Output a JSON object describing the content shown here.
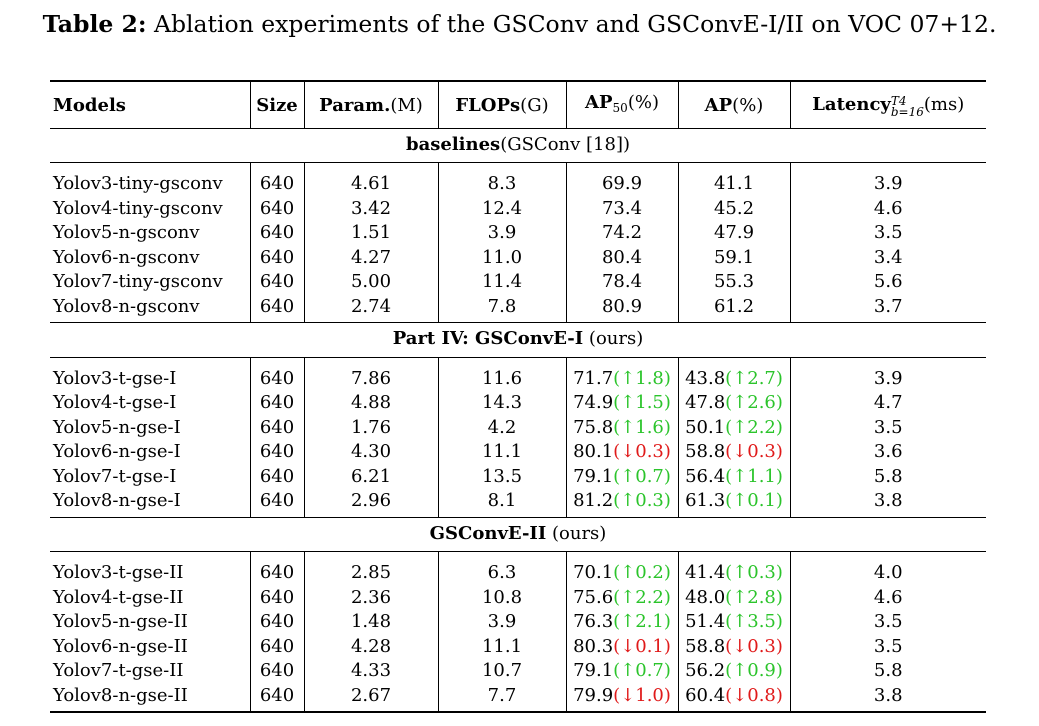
{
  "caption": {
    "label": "Table 2:",
    "text": " Ablation experiments of the GSConv and GSConvE-I/II on VOC 07+12."
  },
  "headers": {
    "models": "Models",
    "size": "Size",
    "param": "Param.",
    "param_unit": "(M)",
    "flops": "FLOPs",
    "flops_unit": "(G)",
    "ap50": "AP",
    "ap50_sub": "50",
    "ap50_unit": "(%)",
    "ap": "AP",
    "ap_unit": "(%)",
    "latency": "Latency",
    "latency_sup": "T4",
    "latency_sub": "b=16",
    "latency_unit": "(ms)"
  },
  "sections": [
    {
      "title_bold": "baselines",
      "title_rest": "(GSConv [18])",
      "rows": [
        {
          "model": "Yolov3-tiny-gsconv",
          "size": "640",
          "param": "4.61",
          "flops": "8.3",
          "ap50": "69.9",
          "ap50_delta": "",
          "ap50_dir": "",
          "ap": "41.1",
          "ap_delta": "",
          "ap_dir": "",
          "latency": "3.9"
        },
        {
          "model": "Yolov4-tiny-gsconv",
          "size": "640",
          "param": "3.42",
          "flops": "12.4",
          "ap50": "73.4",
          "ap50_delta": "",
          "ap50_dir": "",
          "ap": "45.2",
          "ap_delta": "",
          "ap_dir": "",
          "latency": "4.6"
        },
        {
          "model": "Yolov5-n-gsconv",
          "size": "640",
          "param": "1.51",
          "flops": "3.9",
          "ap50": "74.2",
          "ap50_delta": "",
          "ap50_dir": "",
          "ap": "47.9",
          "ap_delta": "",
          "ap_dir": "",
          "latency": "3.5"
        },
        {
          "model": "Yolov6-n-gsconv",
          "size": "640",
          "param": "4.27",
          "flops": "11.0",
          "ap50": "80.4",
          "ap50_delta": "",
          "ap50_dir": "",
          "ap": "59.1",
          "ap_delta": "",
          "ap_dir": "",
          "latency": "3.4"
        },
        {
          "model": "Yolov7-tiny-gsconv",
          "size": "640",
          "param": "5.00",
          "flops": "11.4",
          "ap50": "78.4",
          "ap50_delta": "",
          "ap50_dir": "",
          "ap": "55.3",
          "ap_delta": "",
          "ap_dir": "",
          "latency": "5.6"
        },
        {
          "model": "Yolov8-n-gsconv",
          "size": "640",
          "param": "2.74",
          "flops": "7.8",
          "ap50": "80.9",
          "ap50_delta": "",
          "ap50_dir": "",
          "ap": "61.2",
          "ap_delta": "",
          "ap_dir": "",
          "latency": "3.7"
        }
      ]
    },
    {
      "title_bold": "Part IV: GSConvE-I",
      "title_rest": " (ours)",
      "rows": [
        {
          "model": "Yolov3-t-gse-I",
          "size": "640",
          "param": "7.86",
          "flops": "11.6",
          "ap50": "71.7",
          "ap50_delta": "(↑1.8)",
          "ap50_dir": "up",
          "ap": "43.8",
          "ap_delta": "(↑2.7)",
          "ap_dir": "up",
          "latency": "3.9"
        },
        {
          "model": "Yolov4-t-gse-I",
          "size": "640",
          "param": "4.88",
          "flops": "14.3",
          "ap50": "74.9",
          "ap50_delta": "(↑1.5)",
          "ap50_dir": "up",
          "ap": "47.8",
          "ap_delta": "(↑2.6)",
          "ap_dir": "up",
          "latency": "4.7"
        },
        {
          "model": "Yolov5-n-gse-I",
          "size": "640",
          "param": "1.76",
          "flops": "4.2",
          "ap50": "75.8",
          "ap50_delta": "(↑1.6)",
          "ap50_dir": "up",
          "ap": "50.1",
          "ap_delta": "(↑2.2)",
          "ap_dir": "up",
          "latency": "3.5"
        },
        {
          "model": "Yolov6-n-gse-I",
          "size": "640",
          "param": "4.30",
          "flops": "11.1",
          "ap50": "80.1",
          "ap50_delta": "(↓0.3)",
          "ap50_dir": "down",
          "ap": "58.8",
          "ap_delta": "(↓0.3)",
          "ap_dir": "down",
          "latency": "3.6"
        },
        {
          "model": "Yolov7-t-gse-I",
          "size": "640",
          "param": "6.21",
          "flops": "13.5",
          "ap50": "79.1",
          "ap50_delta": "(↑0.7)",
          "ap50_dir": "up",
          "ap": "56.4",
          "ap_delta": "(↑1.1)",
          "ap_dir": "up",
          "latency": "5.8"
        },
        {
          "model": "Yolov8-n-gse-I",
          "size": "640",
          "param": "2.96",
          "flops": "8.1",
          "ap50": "81.2",
          "ap50_delta": "(↑0.3)",
          "ap50_dir": "up",
          "ap": "61.3",
          "ap_delta": "(↑0.1)",
          "ap_dir": "up",
          "latency": "3.8"
        }
      ]
    },
    {
      "title_bold": "GSConvE-II",
      "title_rest": " (ours)",
      "rows": [
        {
          "model": "Yolov3-t-gse-II",
          "size": "640",
          "param": "2.85",
          "flops": "6.3",
          "ap50": "70.1",
          "ap50_delta": "(↑0.2)",
          "ap50_dir": "up",
          "ap": "41.4",
          "ap_delta": "(↑0.3)",
          "ap_dir": "up",
          "latency": "4.0"
        },
        {
          "model": "Yolov4-t-gse-II",
          "size": "640",
          "param": "2.36",
          "flops": "10.8",
          "ap50": "75.6",
          "ap50_delta": "(↑2.2)",
          "ap50_dir": "up",
          "ap": "48.0",
          "ap_delta": "(↑2.8)",
          "ap_dir": "up",
          "latency": "4.6"
        },
        {
          "model": "Yolov5-n-gse-II",
          "size": "640",
          "param": "1.48",
          "flops": "3.9",
          "ap50": "76.3",
          "ap50_delta": "(↑2.1)",
          "ap50_dir": "up",
          "ap": "51.4",
          "ap_delta": "(↑3.5)",
          "ap_dir": "up",
          "latency": "3.5"
        },
        {
          "model": "Yolov6-n-gse-II",
          "size": "640",
          "param": "4.28",
          "flops": "11.1",
          "ap50": "80.3",
          "ap50_delta": "(↓0.1)",
          "ap50_dir": "down",
          "ap": "58.8",
          "ap_delta": "(↓0.3)",
          "ap_dir": "down",
          "latency": "3.5"
        },
        {
          "model": "Yolov7-t-gse-II",
          "size": "640",
          "param": "4.33",
          "flops": "10.7",
          "ap50": "79.1",
          "ap50_delta": "(↑0.7)",
          "ap50_dir": "up",
          "ap": "56.2",
          "ap_delta": "(↑0.9)",
          "ap_dir": "up",
          "latency": "5.8"
        },
        {
          "model": "Yolov8-n-gse-II",
          "size": "640",
          "param": "2.67",
          "flops": "7.7",
          "ap50": "79.9",
          "ap50_delta": "(↓1.0)",
          "ap50_dir": "down",
          "ap": "60.4",
          "ap_delta": "(↓0.8)",
          "ap_dir": "down",
          "latency": "3.8"
        }
      ]
    }
  ]
}
